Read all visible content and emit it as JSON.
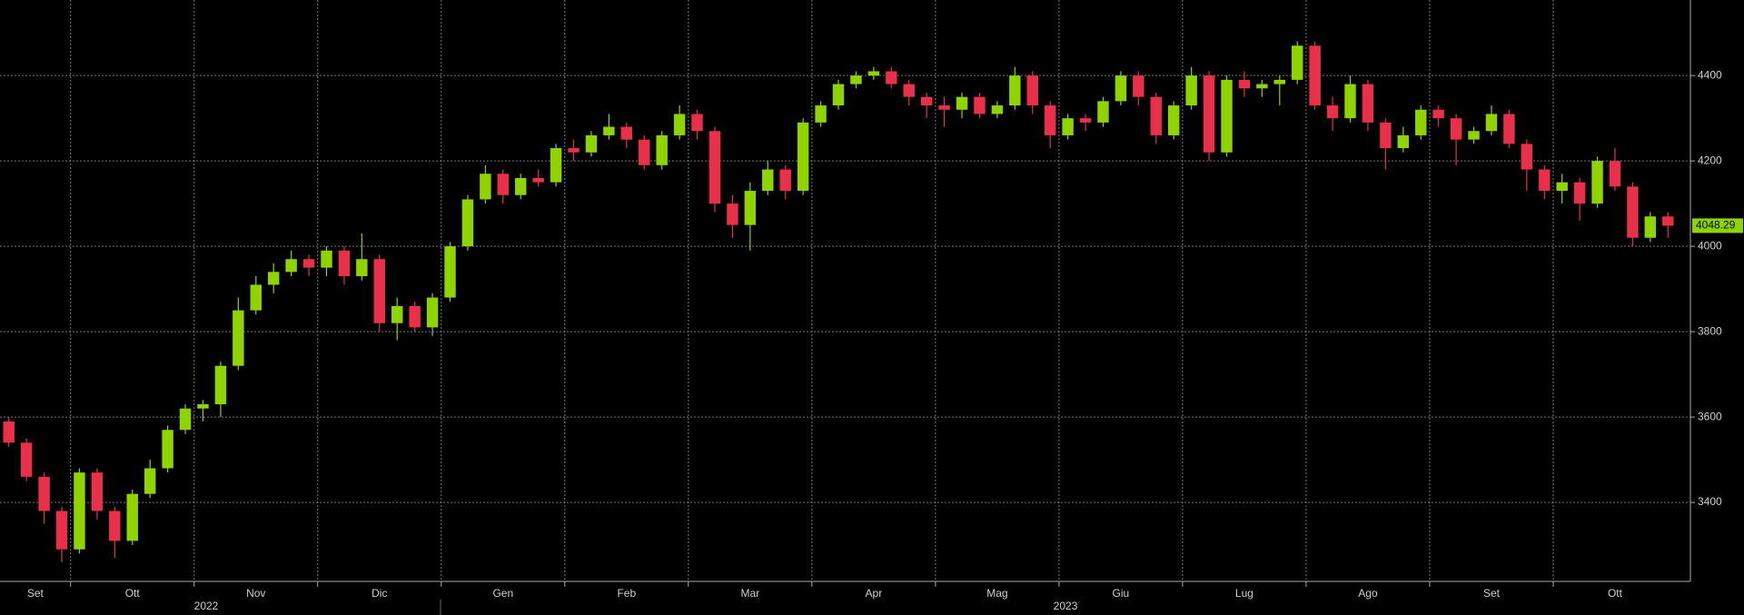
{
  "chart_data": {
    "type": "candlestick",
    "categories": [
      "Set",
      null,
      null,
      null,
      "Ott",
      null,
      null,
      null,
      null,
      null,
      null,
      "Nov",
      null,
      null,
      null,
      null,
      null,
      null,
      "Dic",
      null,
      null,
      null,
      null,
      null,
      null,
      "Gen",
      null,
      null,
      null,
      null,
      null,
      null,
      "Feb",
      null,
      null,
      null,
      null,
      null,
      null,
      "Mar",
      null,
      null,
      null,
      null,
      null,
      null,
      "Apr",
      null,
      null,
      null,
      null,
      null,
      null,
      "Mag",
      null,
      null,
      null,
      null,
      null,
      null,
      "Giu",
      null,
      null,
      null,
      null,
      null,
      null,
      "Lug",
      null,
      null,
      null,
      null,
      null,
      null,
      "Ago",
      null,
      null,
      null,
      null,
      null,
      null,
      "Set",
      null,
      null,
      null,
      null,
      null,
      null,
      "Ott",
      null,
      null,
      null,
      null,
      null,
      null
    ],
    "open": [
      3590,
      3540,
      3460,
      3380,
      3290,
      3470,
      3380,
      3310,
      3420,
      3480,
      3570,
      3620,
      3630,
      3720,
      3850,
      3910,
      3940,
      3970,
      3950,
      3990,
      3930,
      3970,
      3820,
      3860,
      3810,
      3880,
      4000,
      4110,
      4170,
      4120,
      4160,
      4150,
      4230,
      4220,
      4260,
      4280,
      4250,
      4190,
      4260,
      4310,
      4270,
      4100,
      4050,
      4130,
      4180,
      4130,
      4290,
      4330,
      4380,
      4400,
      4410,
      4380,
      4350,
      4330,
      4320,
      4350,
      4310,
      4330,
      4400,
      4330,
      4260,
      4300,
      4290,
      4340,
      4400,
      4350,
      4260,
      4330,
      4400,
      4220,
      4390,
      4370,
      4380,
      4390,
      4470,
      4330,
      4300,
      4380,
      4290,
      4230,
      4260,
      4320,
      4300,
      4250,
      4270,
      4310,
      4240,
      4180,
      4130,
      4150,
      4100,
      4200,
      4140,
      4020,
      4070
    ],
    "high": [
      3600,
      3550,
      3470,
      3390,
      3480,
      3480,
      3390,
      3430,
      3500,
      3580,
      3630,
      3640,
      3730,
      3880,
      3930,
      3960,
      3990,
      3980,
      4000,
      4000,
      4030,
      3980,
      3880,
      3870,
      3890,
      4010,
      4120,
      4190,
      4180,
      4170,
      4180,
      4240,
      4250,
      4270,
      4310,
      4290,
      4260,
      4270,
      4330,
      4320,
      4280,
      4120,
      4150,
      4200,
      4190,
      4300,
      4340,
      4390,
      4410,
      4420,
      4420,
      4390,
      4360,
      4350,
      4360,
      4360,
      4340,
      4420,
      4410,
      4340,
      4310,
      4310,
      4350,
      4410,
      4410,
      4360,
      4340,
      4420,
      4410,
      4400,
      4410,
      4390,
      4400,
      4480,
      4480,
      4350,
      4400,
      4390,
      4300,
      4280,
      4330,
      4330,
      4310,
      4280,
      4330,
      4320,
      4250,
      4190,
      4170,
      4160,
      4210,
      4230,
      4150,
      4080,
      4080
    ],
    "low": [
      3530,
      3450,
      3350,
      3260,
      3280,
      3360,
      3270,
      3300,
      3410,
      3470,
      3560,
      3590,
      3600,
      3710,
      3840,
      3890,
      3930,
      3930,
      3930,
      3910,
      3920,
      3800,
      3780,
      3800,
      3790,
      3870,
      3990,
      4100,
      4100,
      4110,
      4140,
      4140,
      4200,
      4210,
      4250,
      4230,
      4180,
      4180,
      4250,
      4250,
      4080,
      4020,
      3990,
      4120,
      4110,
      4120,
      4280,
      4320,
      4370,
      4390,
      4370,
      4330,
      4300,
      4280,
      4300,
      4300,
      4300,
      4320,
      4310,
      4230,
      4250,
      4270,
      4280,
      4330,
      4330,
      4240,
      4250,
      4320,
      4200,
      4210,
      4350,
      4350,
      4330,
      4380,
      4320,
      4270,
      4290,
      4270,
      4180,
      4220,
      4250,
      4280,
      4190,
      4240,
      4260,
      4230,
      4130,
      4110,
      4100,
      4060,
      4090,
      4130,
      4000,
      4010,
      4020
    ],
    "close": [
      3540,
      3460,
      3380,
      3290,
      3470,
      3380,
      3310,
      3420,
      3480,
      3570,
      3620,
      3630,
      3720,
      3850,
      3910,
      3940,
      3970,
      3950,
      3990,
      3930,
      3970,
      3820,
      3860,
      3810,
      3880,
      4000,
      4110,
      4170,
      4120,
      4160,
      4150,
      4230,
      4220,
      4260,
      4280,
      4250,
      4190,
      4260,
      4310,
      4270,
      4100,
      4050,
      4130,
      4180,
      4130,
      4290,
      4330,
      4380,
      4400,
      4410,
      4380,
      4350,
      4330,
      4320,
      4350,
      4310,
      4330,
      4400,
      4330,
      4260,
      4300,
      4290,
      4340,
      4400,
      4350,
      4260,
      4330,
      4400,
      4220,
      4390,
      4370,
      4380,
      4390,
      4470,
      4330,
      4300,
      4380,
      4290,
      4230,
      4260,
      4320,
      4300,
      4250,
      4270,
      4310,
      4240,
      4180,
      4130,
      4150,
      4100,
      4200,
      4140,
      4020,
      4070,
      4048.29
    ],
    "up_color": "#8fd400",
    "down_color": "#e8304a",
    "ylim": [
      3215,
      4577
    ],
    "yticks": [
      3400,
      3600,
      3800,
      4000,
      4200,
      4400
    ],
    "grid": true,
    "last_value": 4048.29,
    "years": [
      "2022",
      "2023"
    ]
  }
}
